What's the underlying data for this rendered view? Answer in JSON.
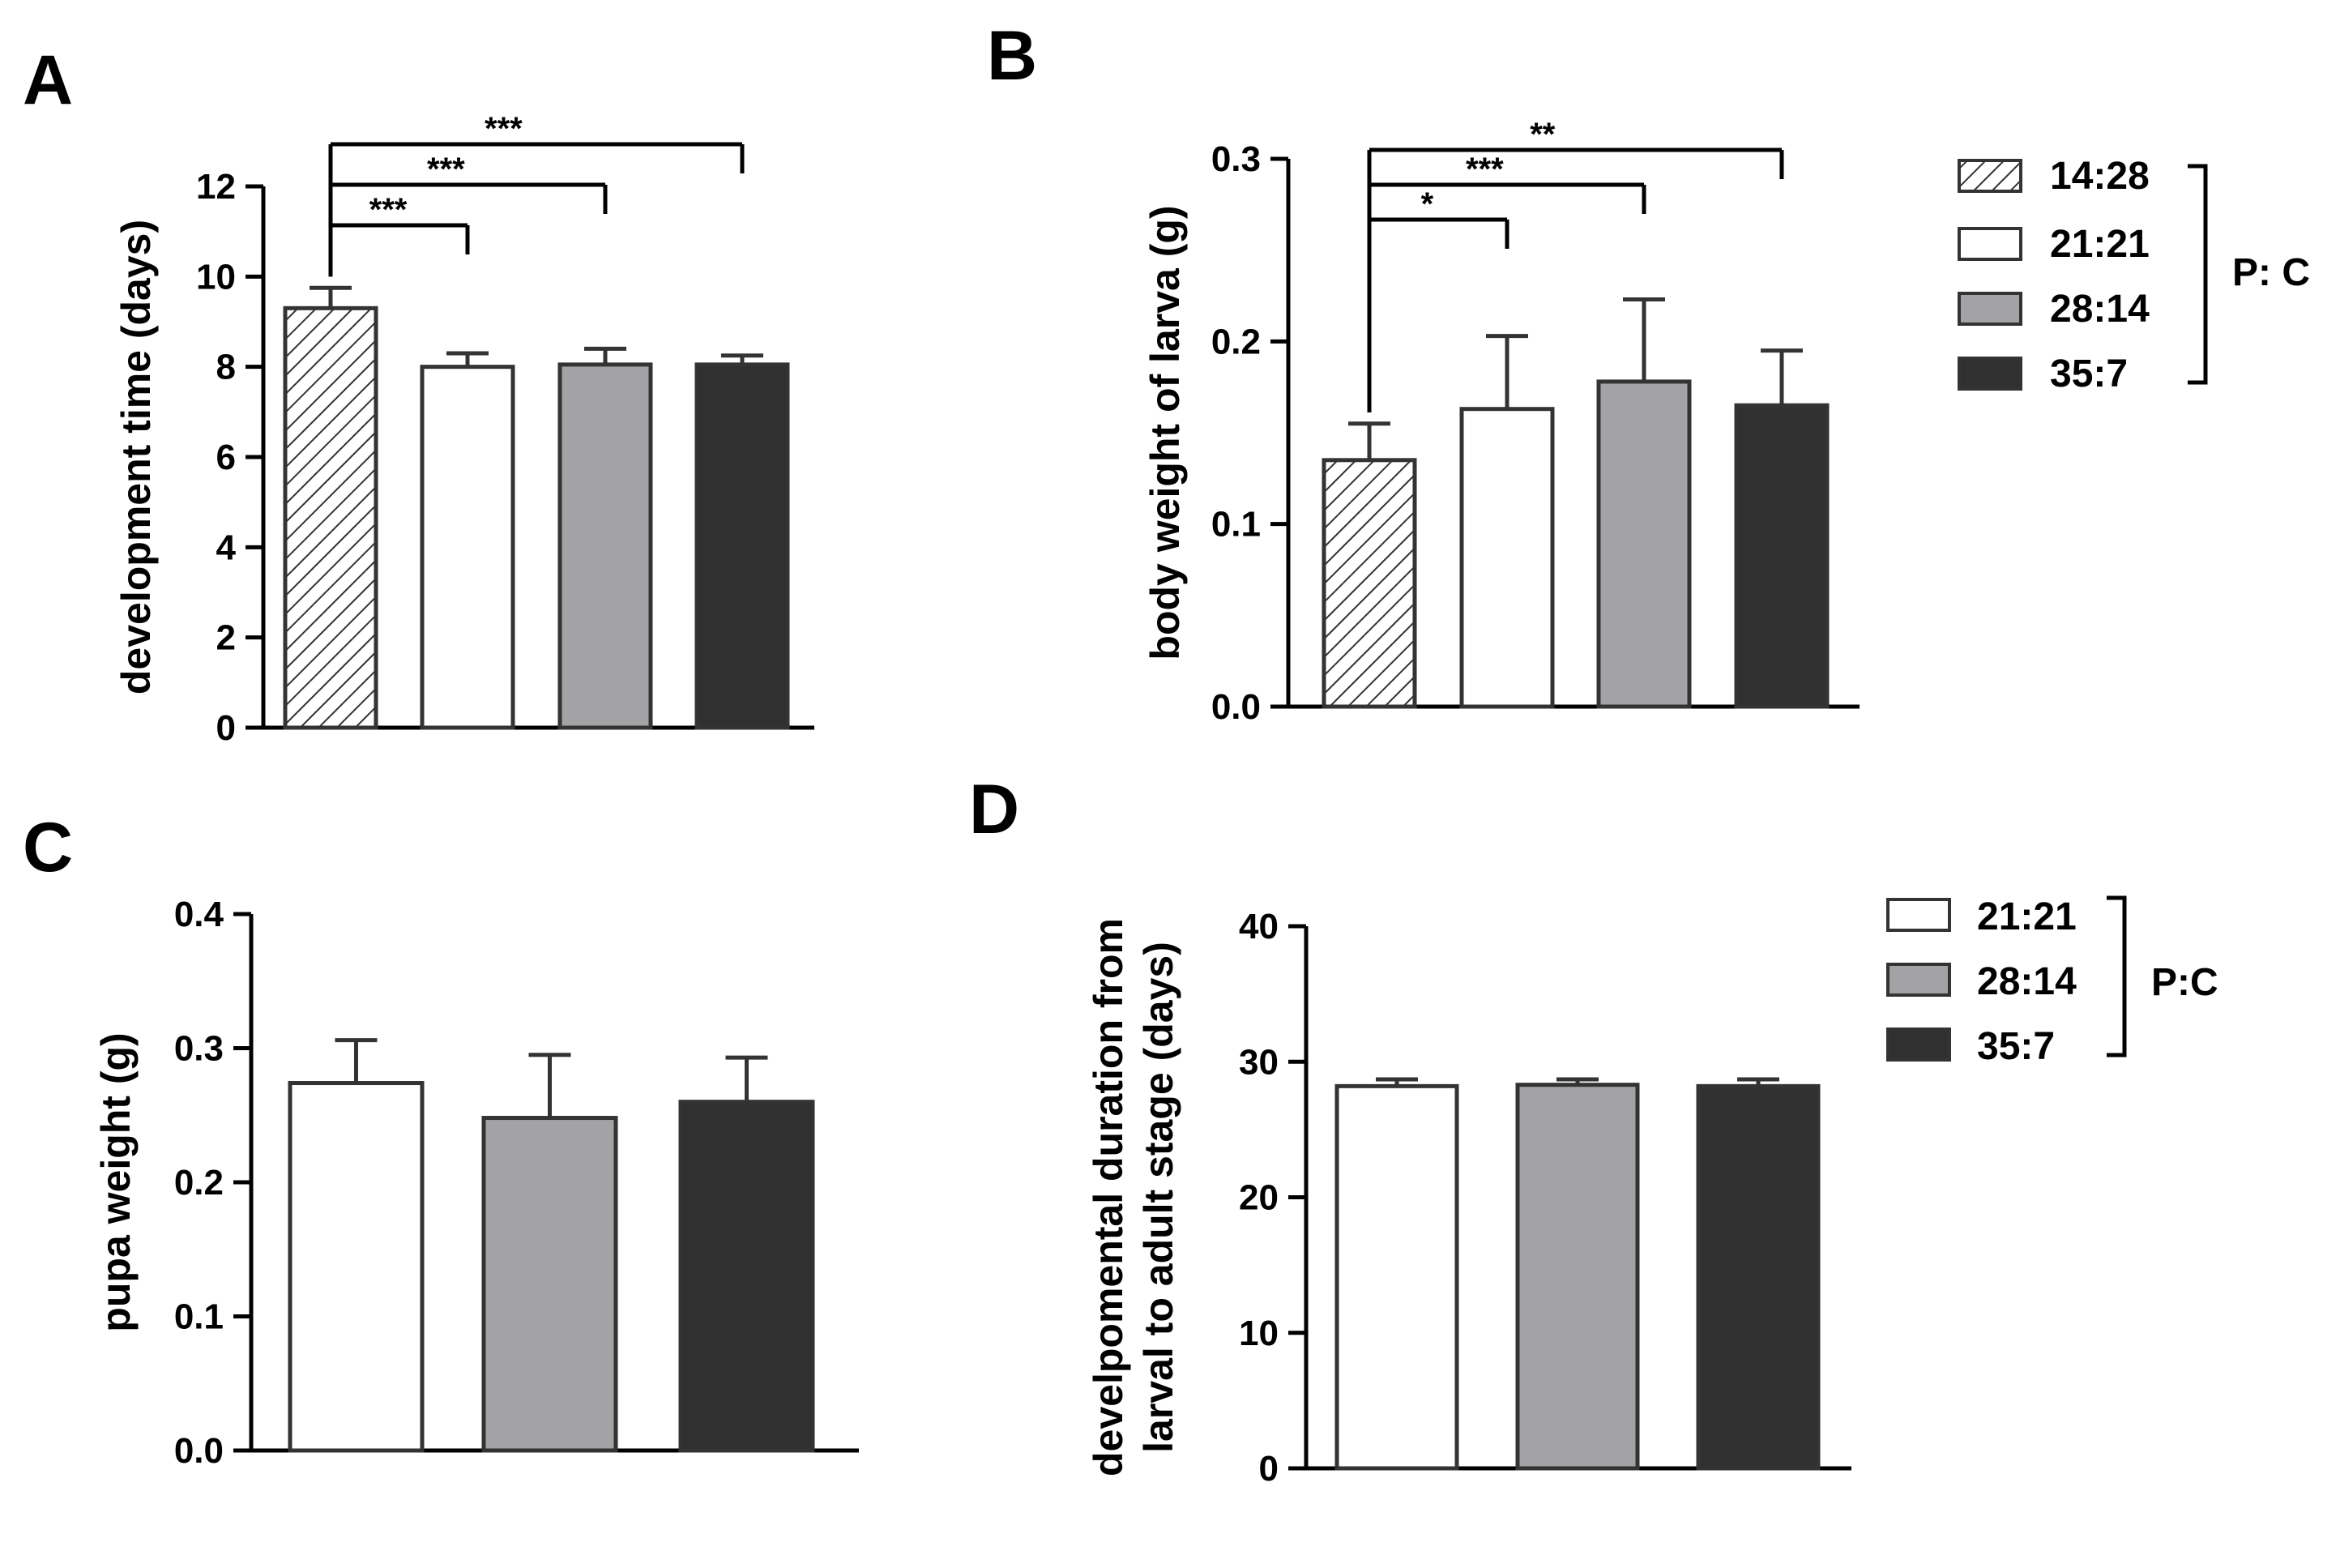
{
  "colors": {
    "14:28": "hatch",
    "21:21": "#ffffff",
    "28:14": "#a3a3a5",
    "35:7": "#303030",
    "outline": "#333333"
  },
  "legend_top": {
    "items": [
      "14:28",
      "21:21",
      "28:14",
      "35:7"
    ],
    "bracket_label": "P: C"
  },
  "legend_bottom": {
    "items": [
      "21:21",
      "28:14",
      "35:7"
    ],
    "bracket_label": "P:C"
  },
  "chart_data": [
    {
      "panel": "A",
      "type": "bar",
      "categories": [
        "14:28",
        "21:21",
        "28:14",
        "35:7"
      ],
      "values": [
        9.3,
        8.0,
        8.05,
        8.05
      ],
      "errors": [
        0.45,
        0.3,
        0.35,
        0.2
      ],
      "ylabel": "development time (days)",
      "ylim": [
        0,
        12
      ],
      "yticks": [
        "0",
        "2",
        "4",
        "6",
        "8",
        "10",
        "12"
      ],
      "significance": [
        {
          "from": 0,
          "to": 1,
          "label": "***"
        },
        {
          "from": 0,
          "to": 2,
          "label": "***"
        },
        {
          "from": 0,
          "to": 3,
          "label": "***"
        }
      ]
    },
    {
      "panel": "B",
      "type": "bar",
      "categories": [
        "14:28",
        "21:21",
        "28:14",
        "35:7"
      ],
      "values": [
        0.135,
        0.163,
        0.178,
        0.165
      ],
      "errors": [
        0.02,
        0.04,
        0.045,
        0.03
      ],
      "ylabel": "body weight of larva (g)",
      "ylim": [
        0,
        0.3
      ],
      "yticks": [
        "0.0",
        "0.1",
        "0.2",
        "0.3"
      ],
      "significance": [
        {
          "from": 0,
          "to": 1,
          "label": "*"
        },
        {
          "from": 0,
          "to": 2,
          "label": "***"
        },
        {
          "from": 0,
          "to": 3,
          "label": "**"
        }
      ]
    },
    {
      "panel": "C",
      "type": "bar",
      "categories": [
        "21:21",
        "28:14",
        "35:7"
      ],
      "values": [
        0.274,
        0.248,
        0.26
      ],
      "errors": [
        0.032,
        0.047,
        0.033
      ],
      "ylabel": "pupa weight (g)",
      "ylim": [
        0,
        0.4
      ],
      "yticks": [
        "0.0",
        "0.1",
        "0.2",
        "0.3",
        "0.4"
      ],
      "significance": []
    },
    {
      "panel": "D",
      "type": "bar",
      "categories": [
        "21:21",
        "28:14",
        "35:7"
      ],
      "values": [
        28.2,
        28.3,
        28.2
      ],
      "errors": [
        0.5,
        0.4,
        0.5
      ],
      "ylabel_lines": [
        "develpomental duration from",
        "larval to adult stage (days)"
      ],
      "ylim": [
        0,
        40
      ],
      "yticks": [
        "0",
        "10",
        "20",
        "30",
        "40"
      ],
      "significance": []
    }
  ]
}
